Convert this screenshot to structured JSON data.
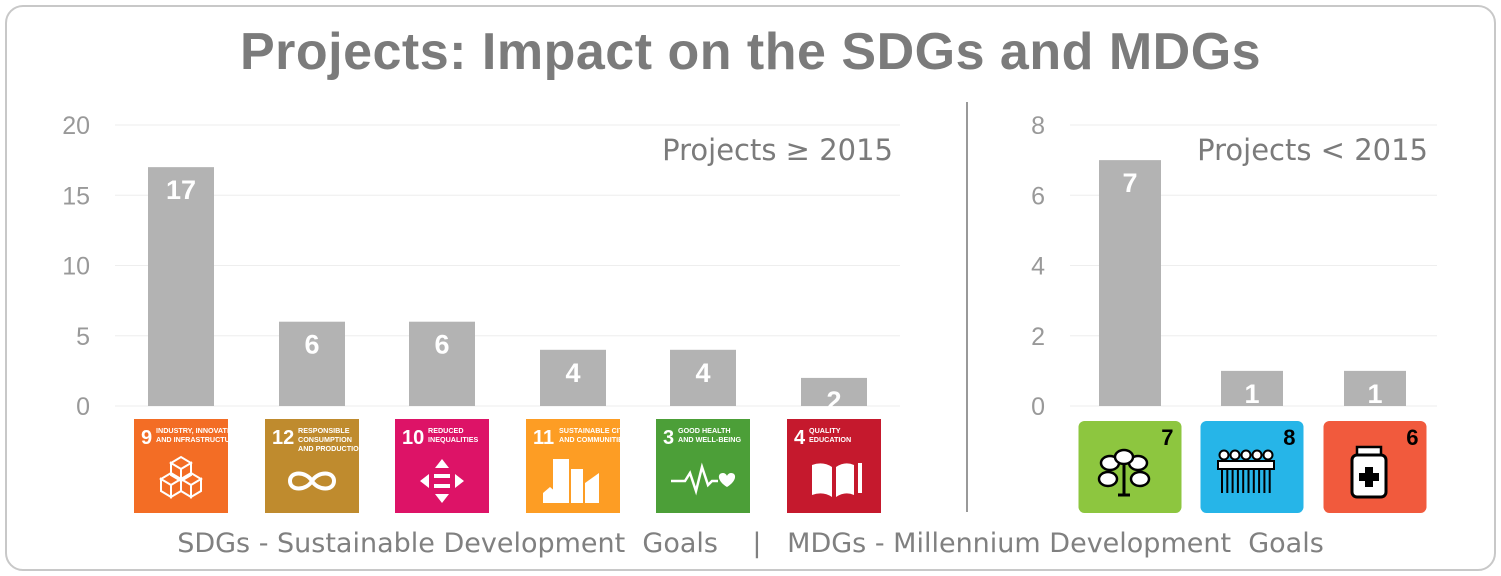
{
  "title": "Projects: Impact on the SDGs and MDGs",
  "footer": {
    "left": "SDGs - Sustainable Development  Goals",
    "separator": "|",
    "right": "MDGs - Millennium Development  Goals"
  },
  "colors": {
    "bar": "#b3b3b3",
    "text": "#7b7b7b",
    "grid": "#eeeeee",
    "divider": "#999999"
  },
  "chart_data": [
    {
      "type": "bar",
      "annotation": "Projects ≥ 2015",
      "categories": [
        "9",
        "12",
        "10",
        "11",
        "3",
        "4"
      ],
      "values": [
        17,
        6,
        6,
        4,
        4,
        2
      ],
      "ylim": [
        0,
        20
      ],
      "yticks": [
        0,
        5,
        10,
        15,
        20
      ],
      "grid": true,
      "tiles": [
        {
          "number": "9",
          "lines": [
            "INDUSTRY, INNOVATION",
            "AND INFRASTRUCTURE"
          ],
          "color": "#f36d25",
          "icon": "cubes-icon"
        },
        {
          "number": "12",
          "lines": [
            "RESPONSIBLE",
            "CONSUMPTION",
            "AND PRODUCTION"
          ],
          "color": "#bf8b2e",
          "icon": "infinity-icon"
        },
        {
          "number": "10",
          "lines": [
            "REDUCED",
            "INEQUALITIES"
          ],
          "color": "#dd1367",
          "icon": "equality-arrows-icon"
        },
        {
          "number": "11",
          "lines": [
            "SUSTAINABLE CITIES",
            "AND COMMUNITIES"
          ],
          "color": "#fd9d24",
          "icon": "city-icon"
        },
        {
          "number": "3",
          "lines": [
            "GOOD HEALTH",
            "AND WELL-BEING"
          ],
          "color": "#4c9f38",
          "icon": "heartbeat-icon"
        },
        {
          "number": "4",
          "lines": [
            "QUALITY",
            "EDUCATION"
          ],
          "color": "#c5192d",
          "icon": "book-icon"
        }
      ]
    },
    {
      "type": "bar",
      "annotation": "Projects < 2015",
      "categories": [
        "7",
        "8",
        "6"
      ],
      "values": [
        7,
        1,
        1
      ],
      "ylim": [
        0,
        8
      ],
      "yticks": [
        0,
        2,
        4,
        6,
        8
      ],
      "grid": true,
      "tiles": [
        {
          "number": "7",
          "color": "#8dc63f",
          "icon": "tree-icon"
        },
        {
          "number": "8",
          "color": "#26b5e8",
          "icon": "people-icon"
        },
        {
          "number": "6",
          "color": "#f15a3d",
          "icon": "medicine-bottle-icon"
        }
      ]
    }
  ]
}
